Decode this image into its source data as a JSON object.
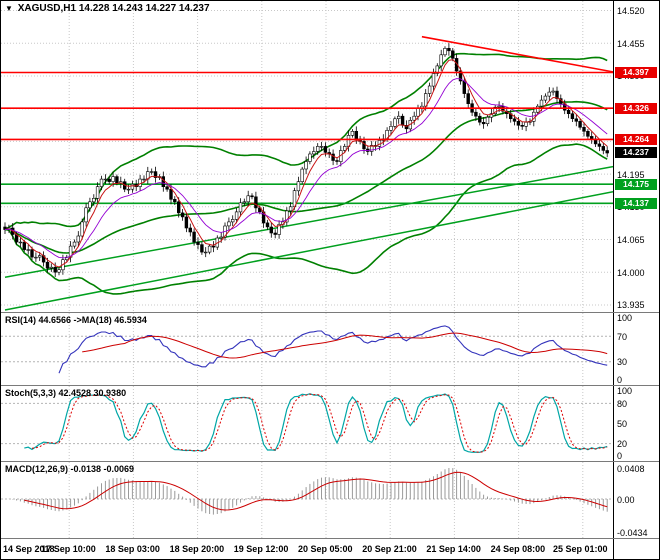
{
  "header": {
    "symbol": "XAGUSD,H1",
    "ohlc": "14.228 14.243 14.227 14.237",
    "marker_icon": "▼"
  },
  "colors": {
    "up": "#ffffff",
    "down": "#000000",
    "grid": "#c8c8c8",
    "band": "#008000",
    "resistance": "#ff0000",
    "support": "#00a01e",
    "ma_fast": "#c81414",
    "ma_slow": "#9400d3",
    "rsi": "#3333bb",
    "rsi_ma": "#cc0000",
    "stoch_k": "#00a6a6",
    "stoch_d": "#dd0000",
    "macd_hist": "#9a9a9a",
    "macd_signal": "#cc0000",
    "badge_resistance": "#e80000",
    "badge_support": "#00a01e",
    "badge_current": "#000000"
  },
  "main_chart": {
    "price_axis_ticks": [
      "14.520",
      "14.455",
      "14.390",
      "14.325",
      "14.260",
      "14.195",
      "14.130",
      "14.065",
      "14.000",
      "13.935"
    ],
    "badges": [
      {
        "value": "14.397",
        "type": "resistance"
      },
      {
        "value": "14.326",
        "type": "resistance"
      },
      {
        "value": "14.264",
        "type": "resistance"
      },
      {
        "value": "14.237",
        "type": "current"
      },
      {
        "value": "14.175",
        "type": "support"
      },
      {
        "value": "14.137",
        "type": "support"
      }
    ]
  },
  "indicators": {
    "rsi": {
      "label": "RSI(14) 44.6566 ->MA(18) 46.5934",
      "period": 14,
      "ma_period": 18,
      "axis": [
        "100",
        "70",
        "30",
        "0"
      ],
      "levels": [
        70,
        30
      ]
    },
    "stoch": {
      "label": "Stoch(5,3,3) 42.4528 30.9380",
      "params": [
        5,
        3,
        3
      ],
      "axis": [
        "100",
        "80",
        "50",
        "20",
        "0"
      ],
      "levels": [
        80,
        20
      ]
    },
    "macd": {
      "label": "MACD(12,26,9) -0.0138 -0.0069",
      "params": [
        12,
        26,
        9
      ],
      "axis_max": 0.0408,
      "axis_min": -0.0434,
      "axis": [
        "0.0408",
        "0.00",
        "-0.0434"
      ]
    }
  },
  "time_axis": {
    "labels": [
      "14 Sep 2018",
      "17 Sep 10:00",
      "18 Sep 03:00",
      "18 Sep 20:00",
      "19 Sep 12:00",
      "20 Sep 05:00",
      "20 Sep 21:00",
      "21 Sep 14:00",
      "24 Sep 08:00",
      "25 Sep 01:00"
    ]
  },
  "chart_data": {
    "type": "candlestick",
    "symbol": "XAGUSD",
    "timeframe": "H1",
    "current_ohlc": {
      "open": 14.228,
      "high": 14.243,
      "low": 14.227,
      "close": 14.237
    },
    "price_range": [
      13.925,
      14.535
    ],
    "closes": [
      14.085,
      14.088,
      14.075,
      14.06,
      14.06,
      14.045,
      14.045,
      14.03,
      14.03,
      14.033,
      14.02,
      14.008,
      14.01,
      14.0,
      14.005,
      14.025,
      14.03,
      14.052,
      14.06,
      14.072,
      14.1,
      14.128,
      14.14,
      14.147,
      14.17,
      14.185,
      14.185,
      14.18,
      14.19,
      14.177,
      14.18,
      14.165,
      14.165,
      14.175,
      14.17,
      14.185,
      14.185,
      14.2,
      14.2,
      14.188,
      14.19,
      14.17,
      14.165,
      14.145,
      14.14,
      14.118,
      14.11,
      14.088,
      14.08,
      14.06,
      14.055,
      14.04,
      14.04,
      14.052,
      14.05,
      14.068,
      14.07,
      14.092,
      14.1,
      14.105,
      14.12,
      14.138,
      14.14,
      14.152,
      14.15,
      14.128,
      14.12,
      14.098,
      14.09,
      14.078,
      14.075,
      14.095,
      14.1,
      14.122,
      14.13,
      14.162,
      14.18,
      14.205,
      14.22,
      14.235,
      14.24,
      14.25,
      14.25,
      14.238,
      14.235,
      14.222,
      14.22,
      14.242,
      14.25,
      14.272,
      14.28,
      14.265,
      14.26,
      14.245,
      14.24,
      14.252,
      14.25,
      14.262,
      14.265,
      14.282,
      14.29,
      14.305,
      14.31,
      14.292,
      14.285,
      14.302,
      14.31,
      14.325,
      14.33,
      14.355,
      14.37,
      14.395,
      14.41,
      14.432,
      14.445,
      14.44,
      14.425,
      14.4,
      14.38,
      14.355,
      14.335,
      14.318,
      14.31,
      14.298,
      14.295,
      14.308,
      14.315,
      14.328,
      14.33,
      14.32,
      14.315,
      14.305,
      14.3,
      14.292,
      14.29,
      14.298,
      14.3,
      14.318,
      14.33,
      14.342,
      14.35,
      14.358,
      14.36,
      14.345,
      14.335,
      14.322,
      14.315,
      14.305,
      14.3,
      14.288,
      14.28,
      14.27,
      14.265,
      14.255,
      14.25,
      14.242,
      14.237
    ],
    "levels": {
      "resistance": [
        14.397,
        14.326,
        14.264
      ],
      "support": [
        14.175,
        14.137
      ],
      "current": 14.237
    },
    "trendlines": [
      {
        "color": "#ff0000",
        "width": 1.6,
        "from_i": 108,
        "from_p": 14.468,
        "to_i": 158,
        "to_p": 14.398
      },
      {
        "color": "#00a01e",
        "width": 1.5,
        "from_i": 0,
        "from_p": 13.99,
        "to_i": 158,
        "to_p": 14.21
      },
      {
        "color": "#00a01e",
        "width": 1.5,
        "from_i": 0,
        "from_p": 13.925,
        "to_i": 158,
        "to_p": 14.16
      }
    ],
    "overlays": {
      "bollinger_period": 44,
      "bollinger_dev": 2,
      "ma_fast": 5,
      "ma_slow": 13
    }
  }
}
